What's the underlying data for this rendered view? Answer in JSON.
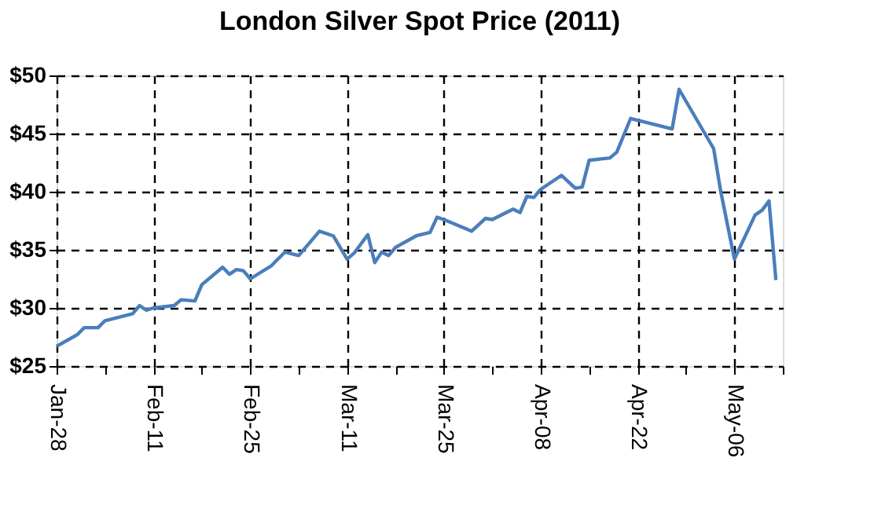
{
  "chart_data": {
    "type": "line",
    "title": "London Silver Spot Price (2011)",
    "x": [
      "2011-01-28",
      "2011-01-31",
      "2011-02-01",
      "2011-02-03",
      "2011-02-04",
      "2011-02-06",
      "2011-02-08",
      "2011-02-09",
      "2011-02-10",
      "2011-02-11",
      "2011-02-14",
      "2011-02-15",
      "2011-02-17",
      "2011-02-18",
      "2011-02-21",
      "2011-02-22",
      "2011-02-23",
      "2011-02-24",
      "2011-02-25",
      "2011-02-28",
      "2011-03-02",
      "2011-03-04",
      "2011-03-07",
      "2011-03-09",
      "2011-03-11",
      "2011-03-12",
      "2011-03-14",
      "2011-03-15",
      "2011-03-16",
      "2011-03-17",
      "2011-03-18",
      "2011-03-21",
      "2011-03-23",
      "2011-03-24",
      "2011-03-25",
      "2011-03-29",
      "2011-03-31",
      "2011-04-01",
      "2011-04-04",
      "2011-04-05",
      "2011-04-06",
      "2011-04-07",
      "2011-04-08",
      "2011-04-11",
      "2011-04-13",
      "2011-04-14",
      "2011-04-15",
      "2011-04-18",
      "2011-04-19",
      "2011-04-21",
      "2011-04-27",
      "2011-04-28",
      "2011-05-03",
      "2011-05-04",
      "2011-05-06",
      "2011-05-09",
      "2011-05-10",
      "2011-05-11",
      "2011-05-12"
    ],
    "series": [
      {
        "color": "#4a7ebb",
        "values": [
          26.7,
          27.7,
          28.3,
          28.3,
          28.9,
          29.2,
          29.5,
          30.2,
          29.8,
          30.0,
          30.2,
          30.7,
          30.6,
          32.0,
          33.5,
          32.9,
          33.3,
          33.2,
          32.5,
          33.6,
          34.8,
          34.5,
          36.6,
          36.2,
          34.2,
          34.7,
          36.3,
          33.9,
          34.8,
          34.5,
          35.2,
          36.2,
          36.5,
          37.8,
          37.6,
          36.6,
          37.7,
          37.6,
          38.5,
          38.2,
          39.6,
          39.5,
          40.2,
          41.4,
          40.3,
          40.4,
          42.7,
          42.9,
          43.4,
          46.3,
          45.4,
          48.8,
          43.7,
          40.1,
          34.2,
          38.0,
          38.4,
          39.2,
          32.4
        ]
      }
    ],
    "xlim": [
      "2011-01-28",
      "2011-05-13"
    ],
    "xticks": [
      {
        "value": "2011-01-28",
        "label": "Jan-28"
      },
      {
        "value": "2011-02-04",
        "label": null
      },
      {
        "value": "2011-02-11",
        "label": "Feb-11"
      },
      {
        "value": "2011-02-18",
        "label": null
      },
      {
        "value": "2011-02-25",
        "label": "Feb-25"
      },
      {
        "value": "2011-03-04",
        "label": null
      },
      {
        "value": "2011-03-11",
        "label": "Mar-11"
      },
      {
        "value": "2011-03-18",
        "label": null
      },
      {
        "value": "2011-03-25",
        "label": "Mar-25"
      },
      {
        "value": "2011-04-01",
        "label": null
      },
      {
        "value": "2011-04-08",
        "label": "Apr-08"
      },
      {
        "value": "2011-04-15",
        "label": null
      },
      {
        "value": "2011-04-22",
        "label": "Apr-22"
      },
      {
        "value": "2011-04-29",
        "label": null
      },
      {
        "value": "2011-05-06",
        "label": "May-06"
      },
      {
        "value": "2011-05-13",
        "label": null
      }
    ],
    "ylim": [
      25,
      50
    ],
    "yticks": [
      {
        "value": 25,
        "label": "$25"
      },
      {
        "value": 30,
        "label": "$30"
      },
      {
        "value": 35,
        "label": "$35"
      },
      {
        "value": 40,
        "label": "$40"
      },
      {
        "value": 45,
        "label": "$45"
      },
      {
        "value": 50,
        "label": "$50"
      }
    ],
    "grid": true,
    "marker": "none",
    "line_style": "solid"
  }
}
